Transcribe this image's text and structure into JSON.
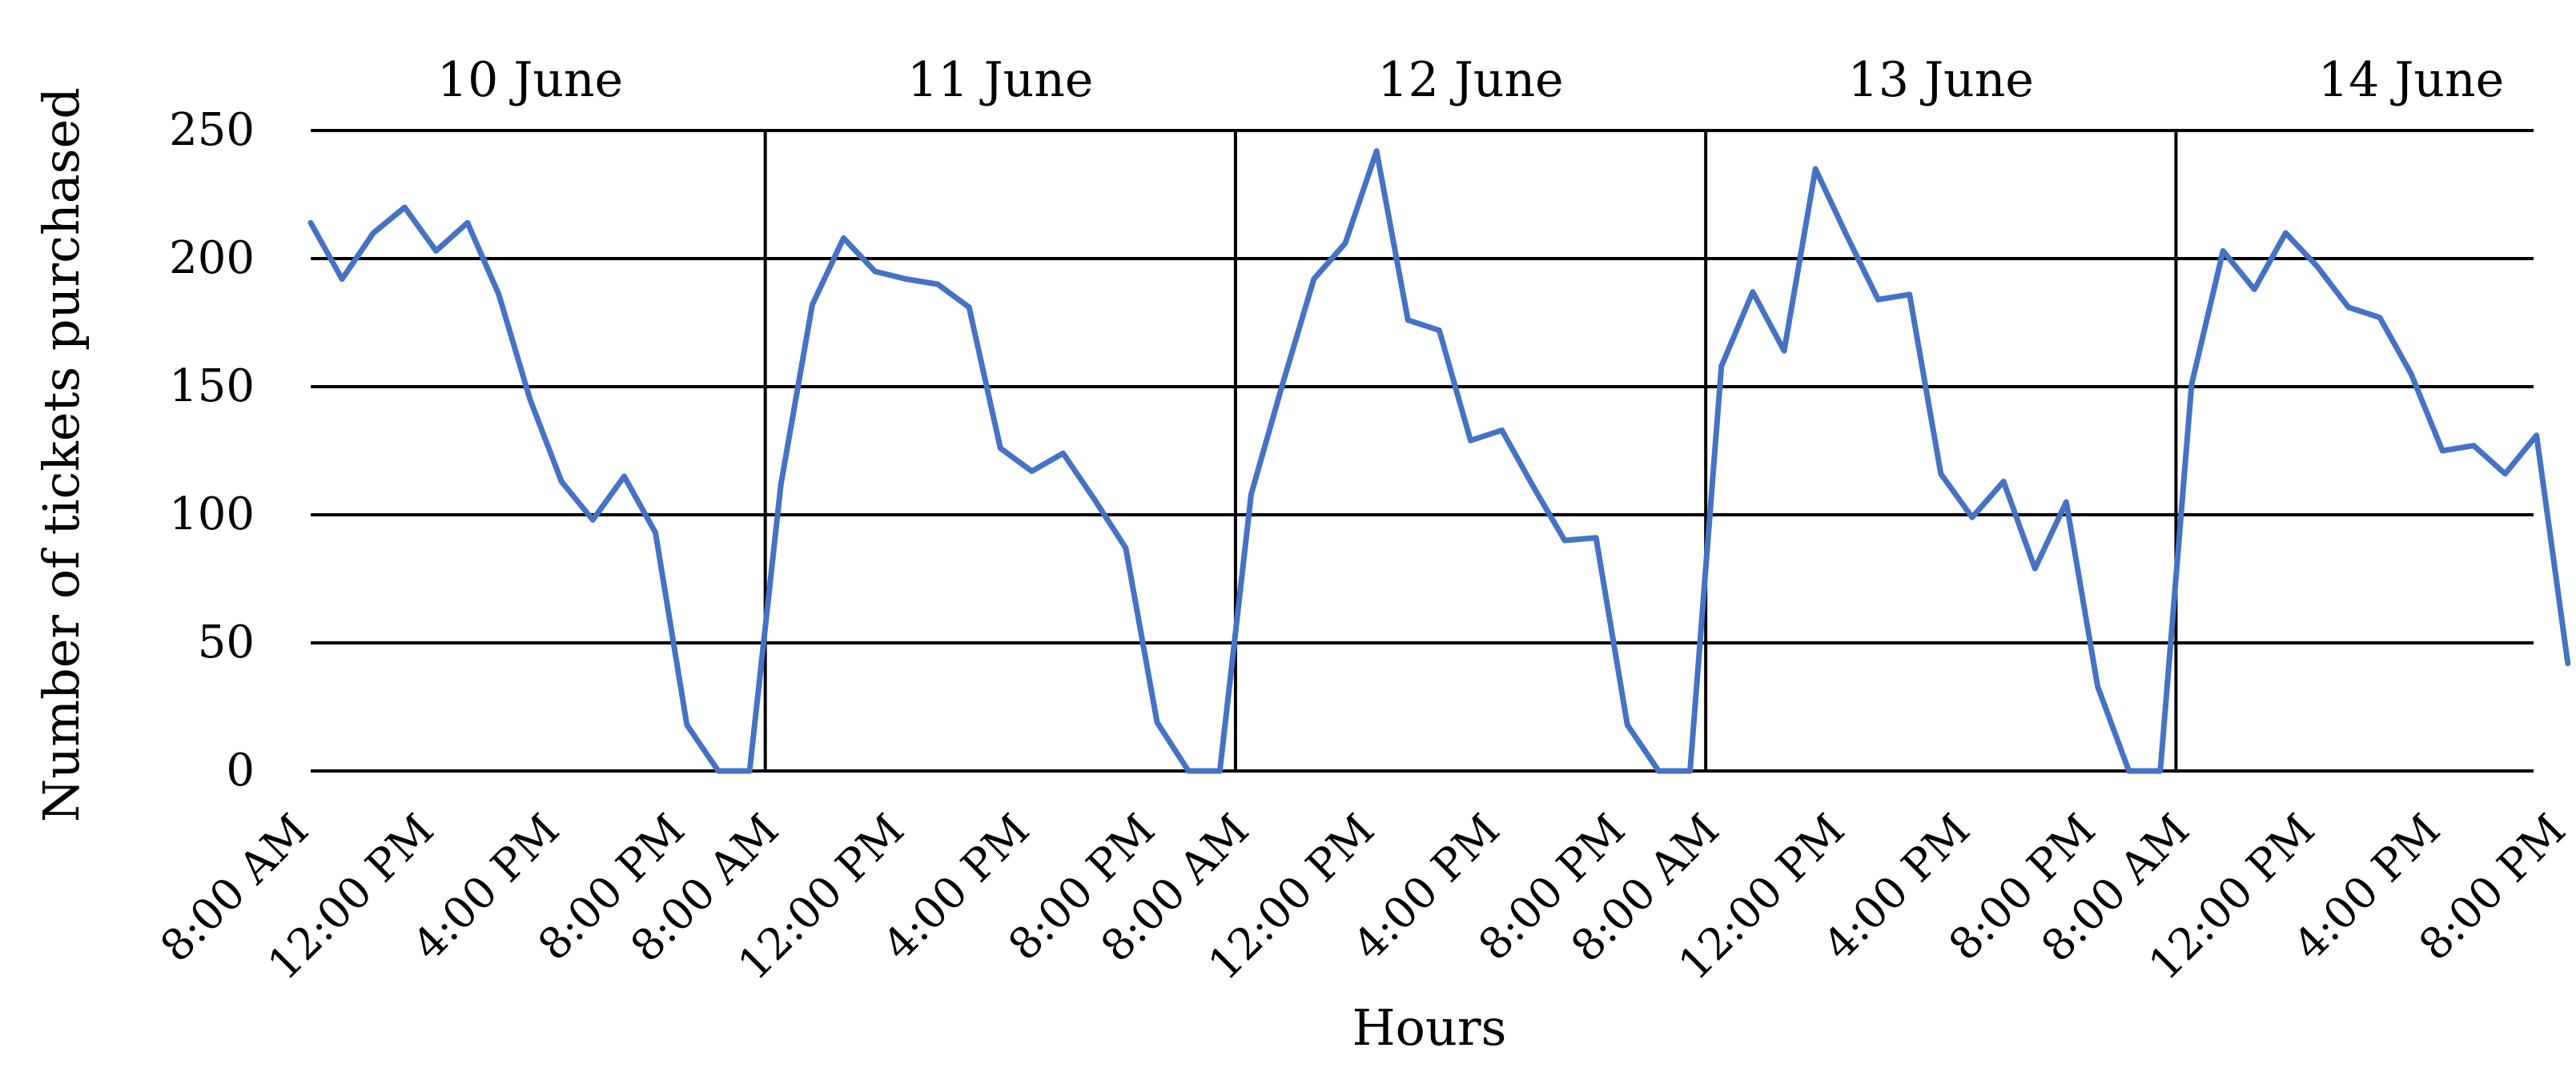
{
  "chart_data": {
    "type": "line",
    "xlabel": "Hours",
    "ylabel": "Number of tickets purchased",
    "ylim": [
      0,
      250
    ],
    "y_ticks": [
      0,
      50,
      100,
      150,
      200,
      250
    ],
    "y_tick_labels": [
      "0",
      "50",
      "100",
      "150",
      "200",
      "250"
    ],
    "grid": true,
    "line_color": "#4472C4",
    "x_tick_labels": [
      "8:00 AM",
      "12:00 PM",
      "4:00 PM",
      "8:00 PM"
    ],
    "days": [
      {
        "label": "10 June",
        "values": [
          214,
          192,
          210,
          220,
          203,
          214,
          186,
          145,
          113,
          98,
          115,
          93,
          18,
          0,
          0
        ]
      },
      {
        "label": "11 June",
        "values": [
          112,
          182,
          208,
          195,
          192,
          190,
          181,
          126,
          117,
          124,
          106,
          87,
          19,
          0,
          0
        ]
      },
      {
        "label": "12 June",
        "values": [
          108,
          151,
          192,
          206,
          242,
          176,
          172,
          129,
          133,
          111,
          90,
          91,
          18,
          0,
          0
        ]
      },
      {
        "label": "13 June",
        "values": [
          158,
          187,
          164,
          235,
          209,
          184,
          186,
          116,
          99,
          113,
          79,
          105,
          33,
          0,
          0
        ]
      },
      {
        "label": "14 June",
        "values": [
          151,
          203,
          188,
          210,
          197,
          181,
          177,
          155,
          125,
          127,
          116,
          131,
          42
        ]
      }
    ]
  }
}
